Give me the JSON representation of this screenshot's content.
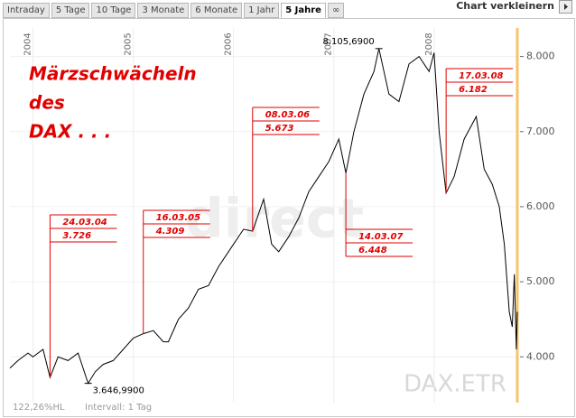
{
  "toolbar": {
    "tabs": [
      "Intraday",
      "5 Tage",
      "10 Tage",
      "3 Monate",
      "6 Monate",
      "1 Jahr",
      "5 Jahre",
      "∞"
    ],
    "active": 6,
    "shrink_label": "Chart verkleinern"
  },
  "footer": {
    "scale": "122,26%HL",
    "interval": "Intervall: 1 Tag"
  },
  "chart_data": {
    "type": "line",
    "title_lines": [
      "Märzschwächeln",
      "des",
      "DAX . . ."
    ],
    "symbol": "DAX.ETR",
    "watermark": "direct",
    "xlim": [
      2003.77,
      2008.83
    ],
    "xticks": [
      2004,
      2005,
      2006,
      2007,
      2008
    ],
    "ylim": [
      3390,
      8380
    ],
    "yticks": [
      {
        "value": 4000,
        "label": "4.000"
      },
      {
        "value": 5000,
        "label": "5.000"
      },
      {
        "value": 6000,
        "label": "6.000"
      },
      {
        "value": 7000,
        "label": "7.000"
      },
      {
        "value": 8000,
        "label": "8.000"
      }
    ],
    "grid": true,
    "series": [
      {
        "name": "DAX",
        "color": "#000000",
        "x": [
          2003.77,
          2003.85,
          2003.95,
          2004.0,
          2004.1,
          2004.17,
          2004.25,
          2004.35,
          2004.45,
          2004.55,
          2004.62,
          2004.7,
          2004.8,
          2004.9,
          2005.0,
          2005.1,
          2005.2,
          2005.3,
          2005.35,
          2005.45,
          2005.55,
          2005.65,
          2005.75,
          2005.85,
          2005.95,
          2006.1,
          2006.19,
          2006.3,
          2006.38,
          2006.45,
          2006.55,
          2006.65,
          2006.75,
          2006.85,
          2006.95,
          2007.05,
          2007.12,
          2007.2,
          2007.3,
          2007.4,
          2007.45,
          2007.55,
          2007.65,
          2007.75,
          2007.85,
          2007.95,
          2008.0,
          2008.05,
          2008.12,
          2008.2,
          2008.3,
          2008.42,
          2008.5,
          2008.58,
          2008.65,
          2008.7,
          2008.75,
          2008.78,
          2008.8,
          2008.82,
          2008.83
        ],
        "values": [
          3850,
          3950,
          4050,
          4000,
          4100,
          3726,
          4000,
          3950,
          4050,
          3647,
          3800,
          3900,
          3950,
          4100,
          4250,
          4309,
          4350,
          4200,
          4200,
          4500,
          4650,
          4900,
          4950,
          5200,
          5400,
          5700,
          5673,
          6100,
          5500,
          5400,
          5600,
          5850,
          6200,
          6400,
          6600,
          6900,
          6448,
          7000,
          7500,
          7800,
          8105.69,
          7500,
          7400,
          7900,
          8000,
          7800,
          8050,
          7000,
          6182,
          6400,
          6900,
          7200,
          6500,
          6300,
          6000,
          5500,
          4600,
          4400,
          5100,
          4100,
          4600
        ]
      }
    ],
    "high": {
      "x": 2007.45,
      "value": 8105.69,
      "label": "8.105,6900"
    },
    "low": {
      "x": 2004.55,
      "value": 3646.99,
      "label": "3.646,9900"
    },
    "annotations": [
      {
        "date": "24.03.04",
        "x": 2004.17,
        "value": 3726,
        "value_label": "3.726"
      },
      {
        "date": "16.03.05",
        "x": 2005.1,
        "value": 4309,
        "value_label": "4.309"
      },
      {
        "date": "08.03.06",
        "x": 2006.19,
        "value": 5673,
        "value_label": "5.673"
      },
      {
        "date": "14.03.07",
        "x": 2007.12,
        "value": 6448,
        "value_label": "6.448"
      },
      {
        "date": "17.03.08",
        "x": 2008.12,
        "value": 6182,
        "value_label": "6.182"
      }
    ],
    "annotation_color": "#e00000",
    "today_color": "#f7c46a"
  }
}
